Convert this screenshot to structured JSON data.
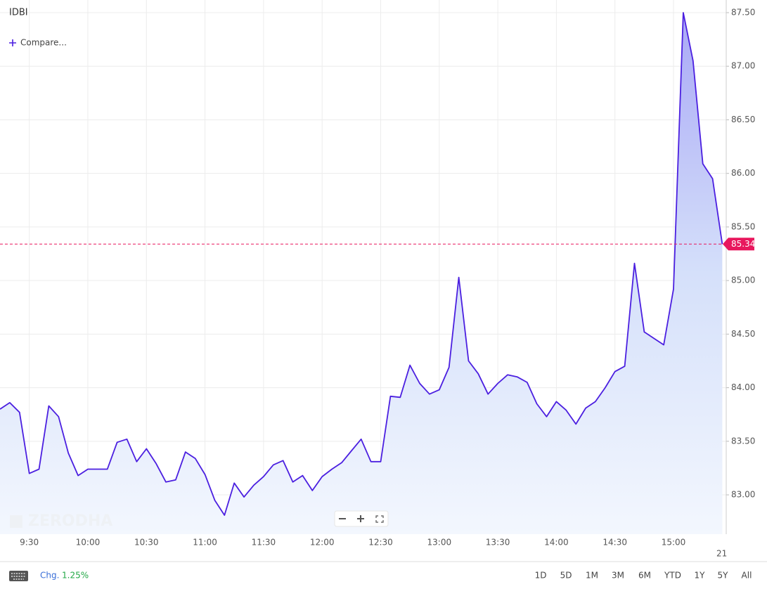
{
  "chart_data": {
    "type": "line",
    "title": "IDBI",
    "x": [
      "9:15",
      "9:20",
      "9:25",
      "9:30",
      "9:35",
      "9:40",
      "9:45",
      "9:50",
      "9:55",
      "10:00",
      "10:05",
      "10:10",
      "10:15",
      "10:20",
      "10:25",
      "10:30",
      "10:35",
      "10:40",
      "10:45",
      "10:50",
      "10:55",
      "11:00",
      "11:05",
      "11:10",
      "11:15",
      "11:20",
      "11:25",
      "11:30",
      "11:35",
      "11:40",
      "11:45",
      "11:50",
      "11:55",
      "12:00",
      "12:05",
      "12:10",
      "12:15",
      "12:20",
      "12:25",
      "12:30",
      "12:35",
      "12:40",
      "12:45",
      "12:50",
      "12:55",
      "13:00",
      "13:05",
      "13:10",
      "13:15",
      "13:20",
      "13:25",
      "13:30",
      "13:35",
      "13:40",
      "13:45",
      "13:50",
      "13:55",
      "14:00",
      "14:05",
      "14:10",
      "14:15",
      "14:20",
      "14:25",
      "14:30",
      "14:35",
      "14:40",
      "14:45",
      "14:50",
      "14:55",
      "15:00",
      "15:05",
      "15:10",
      "15:15",
      "15:20",
      "15:25"
    ],
    "series": [
      {
        "name": "IDBI",
        "color": "#4b1fe0",
        "values": [
          83.8,
          83.86,
          83.77,
          83.2,
          83.24,
          83.83,
          83.73,
          83.39,
          83.18,
          83.24,
          83.24,
          83.24,
          83.49,
          83.52,
          83.31,
          83.43,
          83.29,
          83.12,
          83.14,
          83.4,
          83.34,
          83.19,
          82.95,
          82.81,
          83.11,
          82.98,
          83.09,
          83.17,
          83.28,
          83.32,
          83.12,
          83.18,
          83.04,
          83.17,
          83.24,
          83.3,
          83.41,
          83.52,
          83.31,
          83.31,
          83.92,
          83.91,
          84.21,
          84.04,
          83.94,
          83.98,
          84.19,
          85.03,
          84.25,
          84.13,
          83.94,
          84.04,
          84.12,
          84.1,
          84.05,
          83.85,
          83.73,
          83.87,
          83.79,
          83.66,
          83.81,
          83.87,
          84.0,
          84.15,
          84.2,
          85.16,
          84.52,
          84.46,
          84.4,
          84.92,
          87.5,
          87.05,
          86.09,
          85.95,
          85.34
        ]
      }
    ],
    "xlim": [
      "9:15",
      "15:27"
    ],
    "xticks": [
      "9:30",
      "10:00",
      "10:30",
      "11:00",
      "11:30",
      "12:00",
      "12:30",
      "13:00",
      "13:30",
      "14:00",
      "14:30",
      "15:00"
    ],
    "ylim": [
      82.633,
      87.618
    ],
    "yticks": [
      {
        "value": 83,
        "label": "83.00"
      },
      {
        "value": 83.5,
        "label": "83.50"
      },
      {
        "value": 84,
        "label": "84.00"
      },
      {
        "value": 84.5,
        "label": "84.50"
      },
      {
        "value": 85,
        "label": "85.00"
      },
      {
        "value": 85.5,
        "label": "85.50"
      },
      {
        "value": 86,
        "label": "86.00"
      },
      {
        "value": 86.5,
        "label": "86.50"
      },
      {
        "value": 87,
        "label": "87.00"
      },
      {
        "value": 87.5,
        "label": "87.50"
      }
    ],
    "grid": true,
    "price_line_color": "#e8175d"
  },
  "ui": {
    "compare": "Compare...",
    "watermark": "ZERODHA",
    "change_label": "Chg.",
    "change_value": "1.25%",
    "date_fragment": "21",
    "ranges": [
      "1D",
      "5D",
      "1M",
      "3M",
      "6M",
      "YTD",
      "1Y",
      "5Y",
      "All"
    ]
  }
}
